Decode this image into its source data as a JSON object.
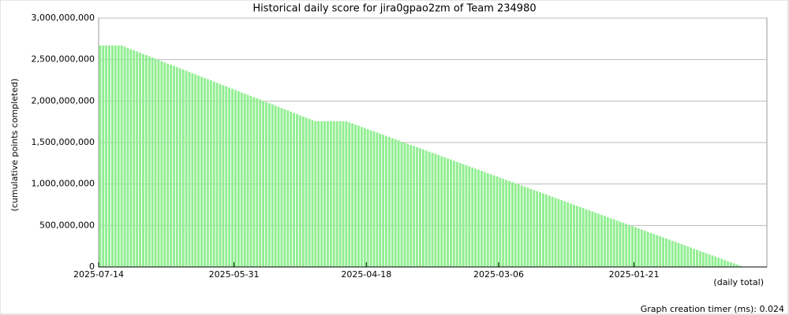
{
  "chart_data": {
    "type": "bar",
    "title": "Historical daily score for jira0gpao2zm of Team 234980",
    "ylabel": "(cumulative points completed)",
    "xlabel": "(daily total)",
    "footer": "Graph creation timer (ms): 0.024",
    "color": "#90ee90",
    "grid": true,
    "ylim": [
      0,
      3000000000
    ],
    "yticks": [
      {
        "value": 0,
        "label": "0"
      },
      {
        "value": 500000000,
        "label": "500,000,000"
      },
      {
        "value": 1000000000,
        "label": "1,000,000,000"
      },
      {
        "value": 1500000000,
        "label": "1,500,000,000"
      },
      {
        "value": 2000000000,
        "label": "2,000,000,000"
      },
      {
        "value": 2500000000,
        "label": "2,500,000,000"
      },
      {
        "value": 3000000000,
        "label": "3,000,000,000"
      }
    ],
    "categories": [
      "2025-07-14",
      null,
      null,
      null,
      null,
      null,
      null,
      null,
      null,
      null,
      null,
      null,
      null,
      null,
      null,
      null,
      null,
      null,
      null,
      null,
      null,
      null,
      null,
      null,
      null,
      null,
      null,
      null,
      null,
      null,
      null,
      null,
      null,
      null,
      null,
      null,
      null,
      null,
      null,
      null,
      null,
      null,
      null,
      null,
      "2025-05-31",
      null,
      null,
      null,
      null,
      null,
      null,
      null,
      null,
      null,
      null,
      null,
      null,
      null,
      null,
      null,
      null,
      null,
      null,
      null,
      null,
      null,
      null,
      null,
      null,
      null,
      null,
      null,
      null,
      null,
      null,
      null,
      null,
      null,
      null,
      null,
      null,
      null,
      null,
      null,
      null,
      null,
      null,
      "2025-04-18",
      null,
      null,
      null,
      null,
      null,
      null,
      null,
      null,
      null,
      null,
      null,
      null,
      null,
      null,
      null,
      null,
      null,
      null,
      null,
      null,
      null,
      null,
      null,
      null,
      null,
      null,
      null,
      null,
      null,
      null,
      null,
      null,
      null,
      null,
      null,
      null,
      null,
      null,
      null,
      null,
      null,
      null,
      "2025-03-06",
      null,
      null,
      null,
      null,
      null,
      null,
      null,
      null,
      null,
      null,
      null,
      null,
      null,
      null,
      null,
      null,
      null,
      null,
      null,
      null,
      null,
      null,
      null,
      null,
      null,
      null,
      null,
      null,
      null,
      null,
      null,
      null,
      null,
      null,
      null,
      null,
      null,
      null,
      null,
      null,
      null,
      null,
      null,
      "2025-01-21",
      null,
      null,
      null,
      null,
      null,
      null,
      null,
      null,
      null,
      null,
      null,
      null,
      null,
      null,
      null,
      null,
      null,
      null,
      null,
      null,
      null,
      null,
      null,
      null,
      null,
      null,
      null,
      null,
      null,
      null,
      null,
      null,
      null,
      null,
      null
    ],
    "values": [
      2670000000.0,
      2670000000.0,
      2670000000.0,
      2670000000.0,
      2670000000.0,
      2670000000.0,
      2670000000.0,
      2670000000.0,
      2656000000.0,
      2641000000.0,
      2626000000.0,
      2612000000.0,
      2598000000.0,
      2583000000.0,
      2568000000.0,
      2554000000.0,
      2540000000.0,
      2525000000.0,
      2510000000.0,
      2496000000.0,
      2482000000.0,
      2467000000.0,
      2452000000.0,
      2438000000.0,
      2424000000.0,
      2409000000.0,
      2394000000.0,
      2380000000.0,
      2366000000.0,
      2351000000.0,
      2336000000.0,
      2322000000.0,
      2308000000.0,
      2293000000.0,
      2278000000.0,
      2264000000.0,
      2250000000.0,
      2235000000.0,
      2220000000.0,
      2206000000.0,
      2192000000.0,
      2177000000.0,
      2162000000.0,
      2148000000.0,
      2134000000.0,
      2119000000.0,
      2104000000.0,
      2090000000.0,
      2076000000.0,
      2061000000.0,
      2046000000.0,
      2032000000.0,
      2018000000.0,
      2003000000.0,
      1988000000.0,
      1974000000.0,
      1960000000.0,
      1945000000.0,
      1930000000.0,
      1916000000.0,
      1902000000.0,
      1887000000.0,
      1872000000.0,
      1858000000.0,
      1844000000.0,
      1829000000.0,
      1814000000.0,
      1800000000.0,
      1786000000.0,
      1771000000.0,
      1757000000.0,
      1757000000.0,
      1757000000.0,
      1757000000.0,
      1757000000.0,
      1757000000.0,
      1757000000.0,
      1757000000.0,
      1757000000.0,
      1757000000.0,
      1757000000.0,
      1743000000.0,
      1730000000.0,
      1716000000.0,
      1703000000.0,
      1689000000.0,
      1675000000.0,
      1662000000.0,
      1648000000.0,
      1635000000.0,
      1621000000.0,
      1607000000.0,
      1594000000.0,
      1580000000.0,
      1567000000.0,
      1553000000.0,
      1539000000.0,
      1526000000.0,
      1512000000.0,
      1499000000.0,
      1485000000.0,
      1471000000.0,
      1458000000.0,
      1444000000.0,
      1431000000.0,
      1417000000.0,
      1403000000.0,
      1390000000.0,
      1376000000.0,
      1363000000.0,
      1349000000.0,
      1335000000.0,
      1322000000.0,
      1308000000.0,
      1295000000.0,
      1281000000.0,
      1267000000.0,
      1254000000.0,
      1240000000.0,
      1227000000.0,
      1213000000.0,
      1199000000.0,
      1186000000.0,
      1172000000.0,
      1159000000.0,
      1145000000.0,
      1131000000.0,
      1118000000.0,
      1104000000.0,
      1091000000.0,
      1077000000.0,
      1063000000.0,
      1050000000.0,
      1036000000.0,
      1023000000.0,
      1009000000.0,
      995000000.0,
      982000000.0,
      968000000.0,
      955000000.0,
      941000000.0,
      927000000.0,
      914000000.0,
      900000000.0,
      887000000.0,
      873000000.0,
      859000000.0,
      846000000.0,
      832000000.0,
      819000000.0,
      805000000.0,
      791000000.0,
      778000000.0,
      764000000.0,
      751000000.0,
      737000000.0,
      723000000.0,
      710000000.0,
      696000000.0,
      683000000.0,
      669000000.0,
      655000000.0,
      642000000.0,
      628000000.0,
      615000000.0,
      601000000.0,
      587000000.0,
      574000000.0,
      560000000.0,
      547000000.0,
      533000000.0,
      519000000.0,
      506000000.0,
      492000000.0,
      479000000.0,
      465000000.0,
      451000000.0,
      438000000.0,
      424000000.0,
      411000000.0,
      397000000.0,
      383000000.0,
      370000000.0,
      356000000.0,
      343000000.0,
      329000000.0,
      315000000.0,
      302000000.0,
      288000000.0,
      275000000.0,
      261000000.0,
      247000000.0,
      234000000.0,
      220000000.0,
      207000000.0,
      193000000.0,
      179000000.0,
      166000000.0,
      152000000.0,
      139000000.0,
      125000000.0,
      111000000.0,
      98000000.0,
      84000000.0,
      71000000.0,
      57000000.0,
      43000000.0,
      30000000.0,
      16000000.0,
      3000000.0
    ]
  }
}
